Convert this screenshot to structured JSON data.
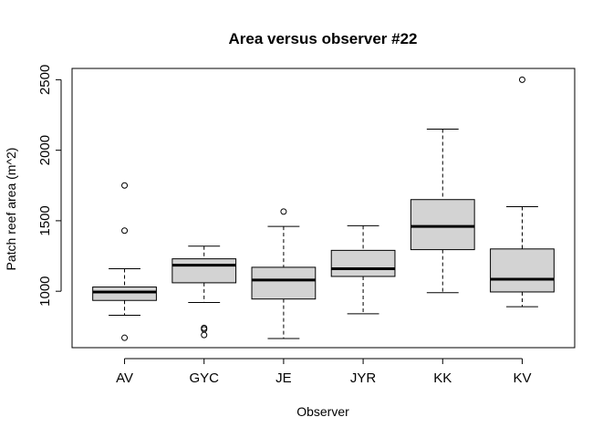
{
  "chart_data": {
    "type": "box",
    "title": "Area versus observer #22",
    "xlabel": "Observer",
    "ylabel": "Patch reef area (m^2)",
    "ylim": [
      600,
      2580
    ],
    "yticks": [
      1000,
      1500,
      2000,
      2500
    ],
    "grid": false,
    "colors": {
      "box_fill": "#d3d3d3",
      "stroke": "#000000"
    },
    "categories": [
      "AV",
      "GYC",
      "JE",
      "JYR",
      "KK",
      "KV"
    ],
    "boxes": [
      {
        "category": "AV",
        "whisker_low": 830,
        "q1": 935,
        "median": 995,
        "q3": 1030,
        "whisker_high": 1160,
        "outliers": [
          670,
          1430,
          1750
        ]
      },
      {
        "category": "GYC",
        "whisker_low": 920,
        "q1": 1060,
        "median": 1185,
        "q3": 1230,
        "whisker_high": 1320,
        "outliers": [
          690,
          730,
          740
        ]
      },
      {
        "category": "JE",
        "whisker_low": 665,
        "q1": 945,
        "median": 1080,
        "q3": 1170,
        "whisker_high": 1460,
        "outliers": [
          1565
        ]
      },
      {
        "category": "JYR",
        "whisker_low": 840,
        "q1": 1105,
        "median": 1160,
        "q3": 1290,
        "whisker_high": 1465,
        "outliers": []
      },
      {
        "category": "KK",
        "whisker_low": 990,
        "q1": 1295,
        "median": 1460,
        "q3": 1650,
        "whisker_high": 2150,
        "outliers": []
      },
      {
        "category": "KV",
        "whisker_low": 890,
        "q1": 995,
        "median": 1085,
        "q3": 1300,
        "whisker_high": 1600,
        "outliers": [
          2500
        ]
      }
    ]
  }
}
